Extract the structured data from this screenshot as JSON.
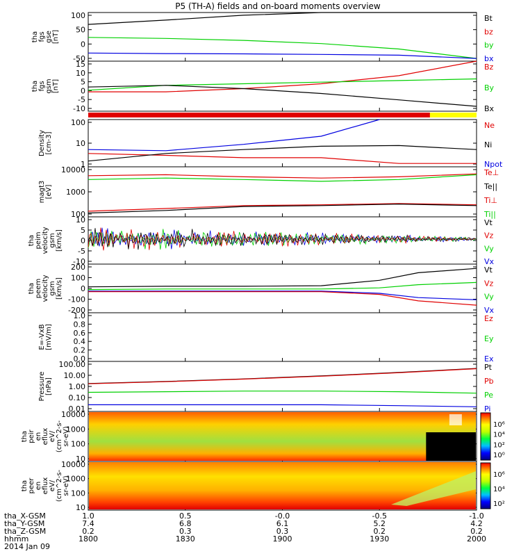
{
  "title": "P5 (TH-A) fields and on-board moments overview",
  "colors": {
    "black": "#000000",
    "red": "#e00000",
    "green": "#00d000",
    "blue": "#0000e0",
    "yellow": "#ffff00",
    "darkred": "#8b0000"
  },
  "panels": [
    {
      "id": "fgs-mag",
      "ylabel": [
        "tha",
        "fgs",
        "gse",
        "[nT]"
      ],
      "yticks": [
        "100",
        "50",
        "0",
        "-50"
      ],
      "legend": [
        {
          "label": "Bt",
          "color": "#000000"
        },
        {
          "label": "bz",
          "color": "#e00000"
        },
        {
          "label": "by",
          "color": "#00d000"
        },
        {
          "label": "bx",
          "color": "#0000e0"
        }
      ]
    },
    {
      "id": "fgs-gsm",
      "ylabel": [
        "tha",
        "fgs",
        "gsm",
        "[nT]"
      ],
      "yticks": [
        "15",
        "10",
        "5",
        "0",
        "-5",
        "-10"
      ],
      "legend": [
        {
          "label": "Bz",
          "color": "#e00000"
        },
        {
          "label": "By",
          "color": "#00d000"
        },
        {
          "label": "Bx",
          "color": "#000000"
        }
      ]
    },
    {
      "id": "density",
      "ylabel": [
        "Density",
        "[cm-3]"
      ],
      "yticks": [
        "100",
        "10",
        "1"
      ],
      "legend": [
        {
          "label": "Ne",
          "color": "#e00000"
        },
        {
          "label": "Ni",
          "color": "#000000"
        },
        {
          "label": "Npot",
          "color": "#0000e0"
        }
      ]
    },
    {
      "id": "temperature",
      "ylabel": [
        "magt3",
        "[eV]"
      ],
      "yticks": [
        "10000",
        "1000",
        "100"
      ],
      "legend": [
        {
          "label": "Te⊥",
          "color": "#e00000"
        },
        {
          "label": "Te||",
          "color": "#000000"
        },
        {
          "label": "Ti⊥",
          "color": "#e00000"
        },
        {
          "label": "Ti||",
          "color": "#00d000"
        }
      ]
    },
    {
      "id": "peim-velocity",
      "ylabel": [
        "tha",
        "peim",
        "velocity",
        "gsm",
        "[km/s]"
      ],
      "yticks": [
        "10",
        "5",
        "0",
        "-5",
        "-10"
      ],
      "legend": [
        {
          "label": "Vt",
          "color": "#000000"
        },
        {
          "label": "Vz",
          "color": "#e00000"
        },
        {
          "label": "Vy",
          "color": "#00d000"
        },
        {
          "label": "Vx",
          "color": "#0000e0"
        }
      ]
    },
    {
      "id": "peem-velocity",
      "ylabel": [
        "tha",
        "peem",
        "velocity",
        "gsm",
        "[km/s]"
      ],
      "yticks": [
        "200",
        "100",
        "0",
        "-100",
        "-200"
      ],
      "legend": [
        {
          "label": "Vt",
          "color": "#000000"
        },
        {
          "label": "Vz",
          "color": "#e00000"
        },
        {
          "label": "Vy",
          "color": "#00d000"
        },
        {
          "label": "Vx",
          "color": "#0000e0"
        }
      ]
    },
    {
      "id": "efield",
      "ylabel": [
        "E=-VxB",
        "[mV/m]"
      ],
      "yticks": [
        "1.0",
        "0.8",
        "0.6",
        "0.4",
        "0.2",
        "0.0"
      ],
      "legend": [
        {
          "label": "Ez",
          "color": "#e00000"
        },
        {
          "label": "Ey",
          "color": "#00d000"
        },
        {
          "label": "Ex",
          "color": "#0000e0"
        }
      ]
    },
    {
      "id": "pressure",
      "ylabel": [
        "Pressure",
        "[nPa]"
      ],
      "yticks": [
        "100.00",
        "10.00",
        "1.00",
        "0.10",
        "0.01"
      ],
      "legend": [
        {
          "label": "Pt",
          "color": "#000000"
        },
        {
          "label": "Pb",
          "color": "#e00000"
        },
        {
          "label": "Pe",
          "color": "#00d000"
        },
        {
          "label": "Pi",
          "color": "#0000e0"
        }
      ]
    },
    {
      "id": "peir-spectrogram",
      "ylabel": [
        "tha",
        "peir",
        "en",
        "eflux",
        "eV/",
        "(cm^2-s-",
        "sr-eV)"
      ],
      "yticks": [
        "10000",
        "1000",
        "100",
        "10"
      ],
      "legend": []
    },
    {
      "id": "peer-spectrogram",
      "ylabel": [
        "tha",
        "peer",
        "en",
        "eflux",
        "eV/",
        "(cm^2-s-",
        "sr-eV)"
      ],
      "yticks": [
        "10000",
        "1000",
        "100",
        "10"
      ],
      "legend": []
    }
  ],
  "colorbars": [
    {
      "id": "peir-colorbar",
      "labels": [
        "10⁶",
        "10⁴",
        "10²",
        "10⁰"
      ]
    },
    {
      "id": "peer-colorbar",
      "labels": [
        "10⁶",
        "10⁴",
        "10²"
      ]
    }
  ],
  "xaxis": {
    "rows": [
      {
        "label": "tha_X-GSM",
        "values": [
          "1.0",
          "0.5",
          "-0.0",
          "-0.5",
          "-1.0"
        ]
      },
      {
        "label": "tha_Y-GSM",
        "values": [
          "7.4",
          "6.8",
          "6.1",
          "5.2",
          "4.2"
        ]
      },
      {
        "label": "tha_Z-GSM",
        "values": [
          "0.2",
          "0.3",
          "0.3",
          "0.2",
          "0.2"
        ]
      },
      {
        "label": "hhmm",
        "values": [
          "1800",
          "1830",
          "1900",
          "1930",
          "2000"
        ]
      }
    ],
    "date": "2014 Jan 09"
  },
  "chart_data": {
    "type": "line",
    "title": "P5 (TH-A) fields and on-board moments overview",
    "x_ticks": [
      "1800",
      "1830",
      "1900",
      "1930",
      "2000"
    ],
    "xlim": [
      "18:00",
      "20:00"
    ],
    "series": [
      {
        "panel": "fgs-mag",
        "name": "Bt",
        "points": [
          [
            0,
            66
          ],
          [
            0.2,
            82
          ],
          [
            0.4,
            100
          ],
          [
            0.6,
            125
          ],
          [
            0.8,
            160
          ],
          [
            1.0,
            190
          ]
        ]
      },
      {
        "panel": "fgs-mag",
        "name": "by",
        "points": [
          [
            0,
            18
          ],
          [
            0.2,
            14
          ],
          [
            0.4,
            7
          ],
          [
            0.6,
            -5
          ],
          [
            0.8,
            -25
          ],
          [
            1.0,
            -60
          ]
        ]
      },
      {
        "panel": "fgs-mag",
        "name": "bx",
        "points": [
          [
            0,
            -40
          ],
          [
            0.2,
            -42
          ],
          [
            0.4,
            -43
          ],
          [
            0.6,
            -45
          ],
          [
            0.8,
            -48
          ],
          [
            1.0,
            -60
          ]
        ]
      },
      {
        "panel": "fgs-gsm",
        "name": "Bz",
        "points": [
          [
            0,
            -2
          ],
          [
            0.2,
            -2
          ],
          [
            0.4,
            0
          ],
          [
            0.6,
            3
          ],
          [
            0.8,
            8
          ],
          [
            1.0,
            17
          ]
        ]
      },
      {
        "panel": "fgs-gsm",
        "name": "By",
        "points": [
          [
            0,
            -1
          ],
          [
            0.2,
            2
          ],
          [
            0.4,
            3
          ],
          [
            0.6,
            4
          ],
          [
            0.8,
            5
          ],
          [
            1.0,
            6
          ]
        ]
      },
      {
        "panel": "fgs-gsm",
        "name": "Bx",
        "points": [
          [
            0,
            1
          ],
          [
            0.2,
            2
          ],
          [
            0.4,
            0
          ],
          [
            0.6,
            -3
          ],
          [
            0.8,
            -7
          ],
          [
            1.0,
            -11
          ]
        ]
      },
      {
        "panel": "density",
        "name": "Ne",
        "points": [
          [
            0,
            5
          ],
          [
            0.2,
            4
          ],
          [
            0.4,
            3
          ],
          [
            0.6,
            3
          ],
          [
            0.8,
            1.5
          ],
          [
            1.0,
            1.5
          ]
        ]
      },
      {
        "panel": "density",
        "name": "Ni",
        "points": [
          [
            0,
            2
          ],
          [
            0.2,
            5
          ],
          [
            0.4,
            8
          ],
          [
            0.6,
            12
          ],
          [
            0.8,
            13
          ],
          [
            1.0,
            8
          ]
        ]
      },
      {
        "panel": "density",
        "name": "Npot",
        "points": [
          [
            0,
            8
          ],
          [
            0.2,
            7
          ],
          [
            0.4,
            15
          ],
          [
            0.6,
            40
          ],
          [
            0.75,
            300
          ]
        ]
      },
      {
        "panel": "temperature",
        "name": "Te⊥",
        "points": [
          [
            0,
            4000
          ],
          [
            0.2,
            4500
          ],
          [
            0.4,
            3500
          ],
          [
            0.6,
            3000
          ],
          [
            0.8,
            3500
          ],
          [
            1.0,
            5000
          ]
        ]
      },
      {
        "panel": "temperature",
        "name": "Ti||",
        "points": [
          [
            0,
            2500
          ],
          [
            0.2,
            3000
          ],
          [
            0.4,
            2500
          ],
          [
            0.6,
            2000
          ],
          [
            0.8,
            2500
          ],
          [
            1.0,
            4500
          ]
        ]
      },
      {
        "panel": "temperature",
        "name": "Ti⊥",
        "points": [
          [
            0,
            50
          ],
          [
            0.2,
            70
          ],
          [
            0.4,
            100
          ],
          [
            0.6,
            110
          ],
          [
            0.8,
            130
          ],
          [
            1.0,
            110
          ]
        ]
      },
      {
        "panel": "temperature",
        "name": "Te||",
        "points": [
          [
            0,
            40
          ],
          [
            0.2,
            55
          ],
          [
            0.4,
            90
          ],
          [
            0.6,
            100
          ],
          [
            0.8,
            120
          ],
          [
            1.0,
            100
          ]
        ]
      },
      {
        "panel": "peem-velocity",
        "name": "Vt",
        "points": [
          [
            0,
            20
          ],
          [
            0.2,
            25
          ],
          [
            0.4,
            25
          ],
          [
            0.6,
            30
          ],
          [
            0.75,
            80
          ],
          [
            0.85,
            150
          ],
          [
            1.0,
            190
          ]
        ]
      },
      {
        "panel": "peem-velocity",
        "name": "Vy",
        "points": [
          [
            0,
            -5
          ],
          [
            0.2,
            0
          ],
          [
            0.4,
            0
          ],
          [
            0.6,
            0
          ],
          [
            0.75,
            10
          ],
          [
            0.85,
            40
          ],
          [
            1.0,
            60
          ]
        ]
      },
      {
        "panel": "peem-velocity",
        "name": "Vx",
        "points": [
          [
            0,
            -20
          ],
          [
            0.2,
            -20
          ],
          [
            0.4,
            -20
          ],
          [
            0.6,
            -20
          ],
          [
            0.75,
            -40
          ],
          [
            0.85,
            -80
          ],
          [
            1.0,
            -100
          ]
        ]
      },
      {
        "panel": "peem-velocity",
        "name": "Vz",
        "points": [
          [
            0,
            -25
          ],
          [
            0.2,
            -25
          ],
          [
            0.4,
            -25
          ],
          [
            0.6,
            -25
          ],
          [
            0.75,
            -50
          ],
          [
            0.85,
            -110
          ],
          [
            1.0,
            -150
          ]
        ]
      },
      {
        "panel": "pressure",
        "name": "Pt",
        "points": [
          [
            0,
            2
          ],
          [
            0.2,
            3
          ],
          [
            0.4,
            5
          ],
          [
            0.6,
            9
          ],
          [
            0.8,
            18
          ],
          [
            1.0,
            40
          ]
        ]
      },
      {
        "panel": "pressure",
        "name": "Pb",
        "points": [
          [
            0,
            1.9
          ],
          [
            0.2,
            2.9
          ],
          [
            0.4,
            4.8
          ],
          [
            0.6,
            8.5
          ],
          [
            0.8,
            17
          ],
          [
            1.0,
            38
          ]
        ]
      },
      {
        "panel": "pressure",
        "name": "Pe",
        "points": [
          [
            0,
            0.35
          ],
          [
            0.2,
            0.4
          ],
          [
            0.4,
            0.45
          ],
          [
            0.6,
            0.45
          ],
          [
            0.8,
            0.4
          ],
          [
            1.0,
            0.3
          ]
        ]
      },
      {
        "panel": "pressure",
        "name": "Pi",
        "points": [
          [
            0,
            0.03
          ],
          [
            0.2,
            0.03
          ],
          [
            0.4,
            0.03
          ],
          [
            0.6,
            0.03
          ],
          [
            0.8,
            0.025
          ],
          [
            1.0,
            0.02
          ]
        ]
      }
    ]
  }
}
